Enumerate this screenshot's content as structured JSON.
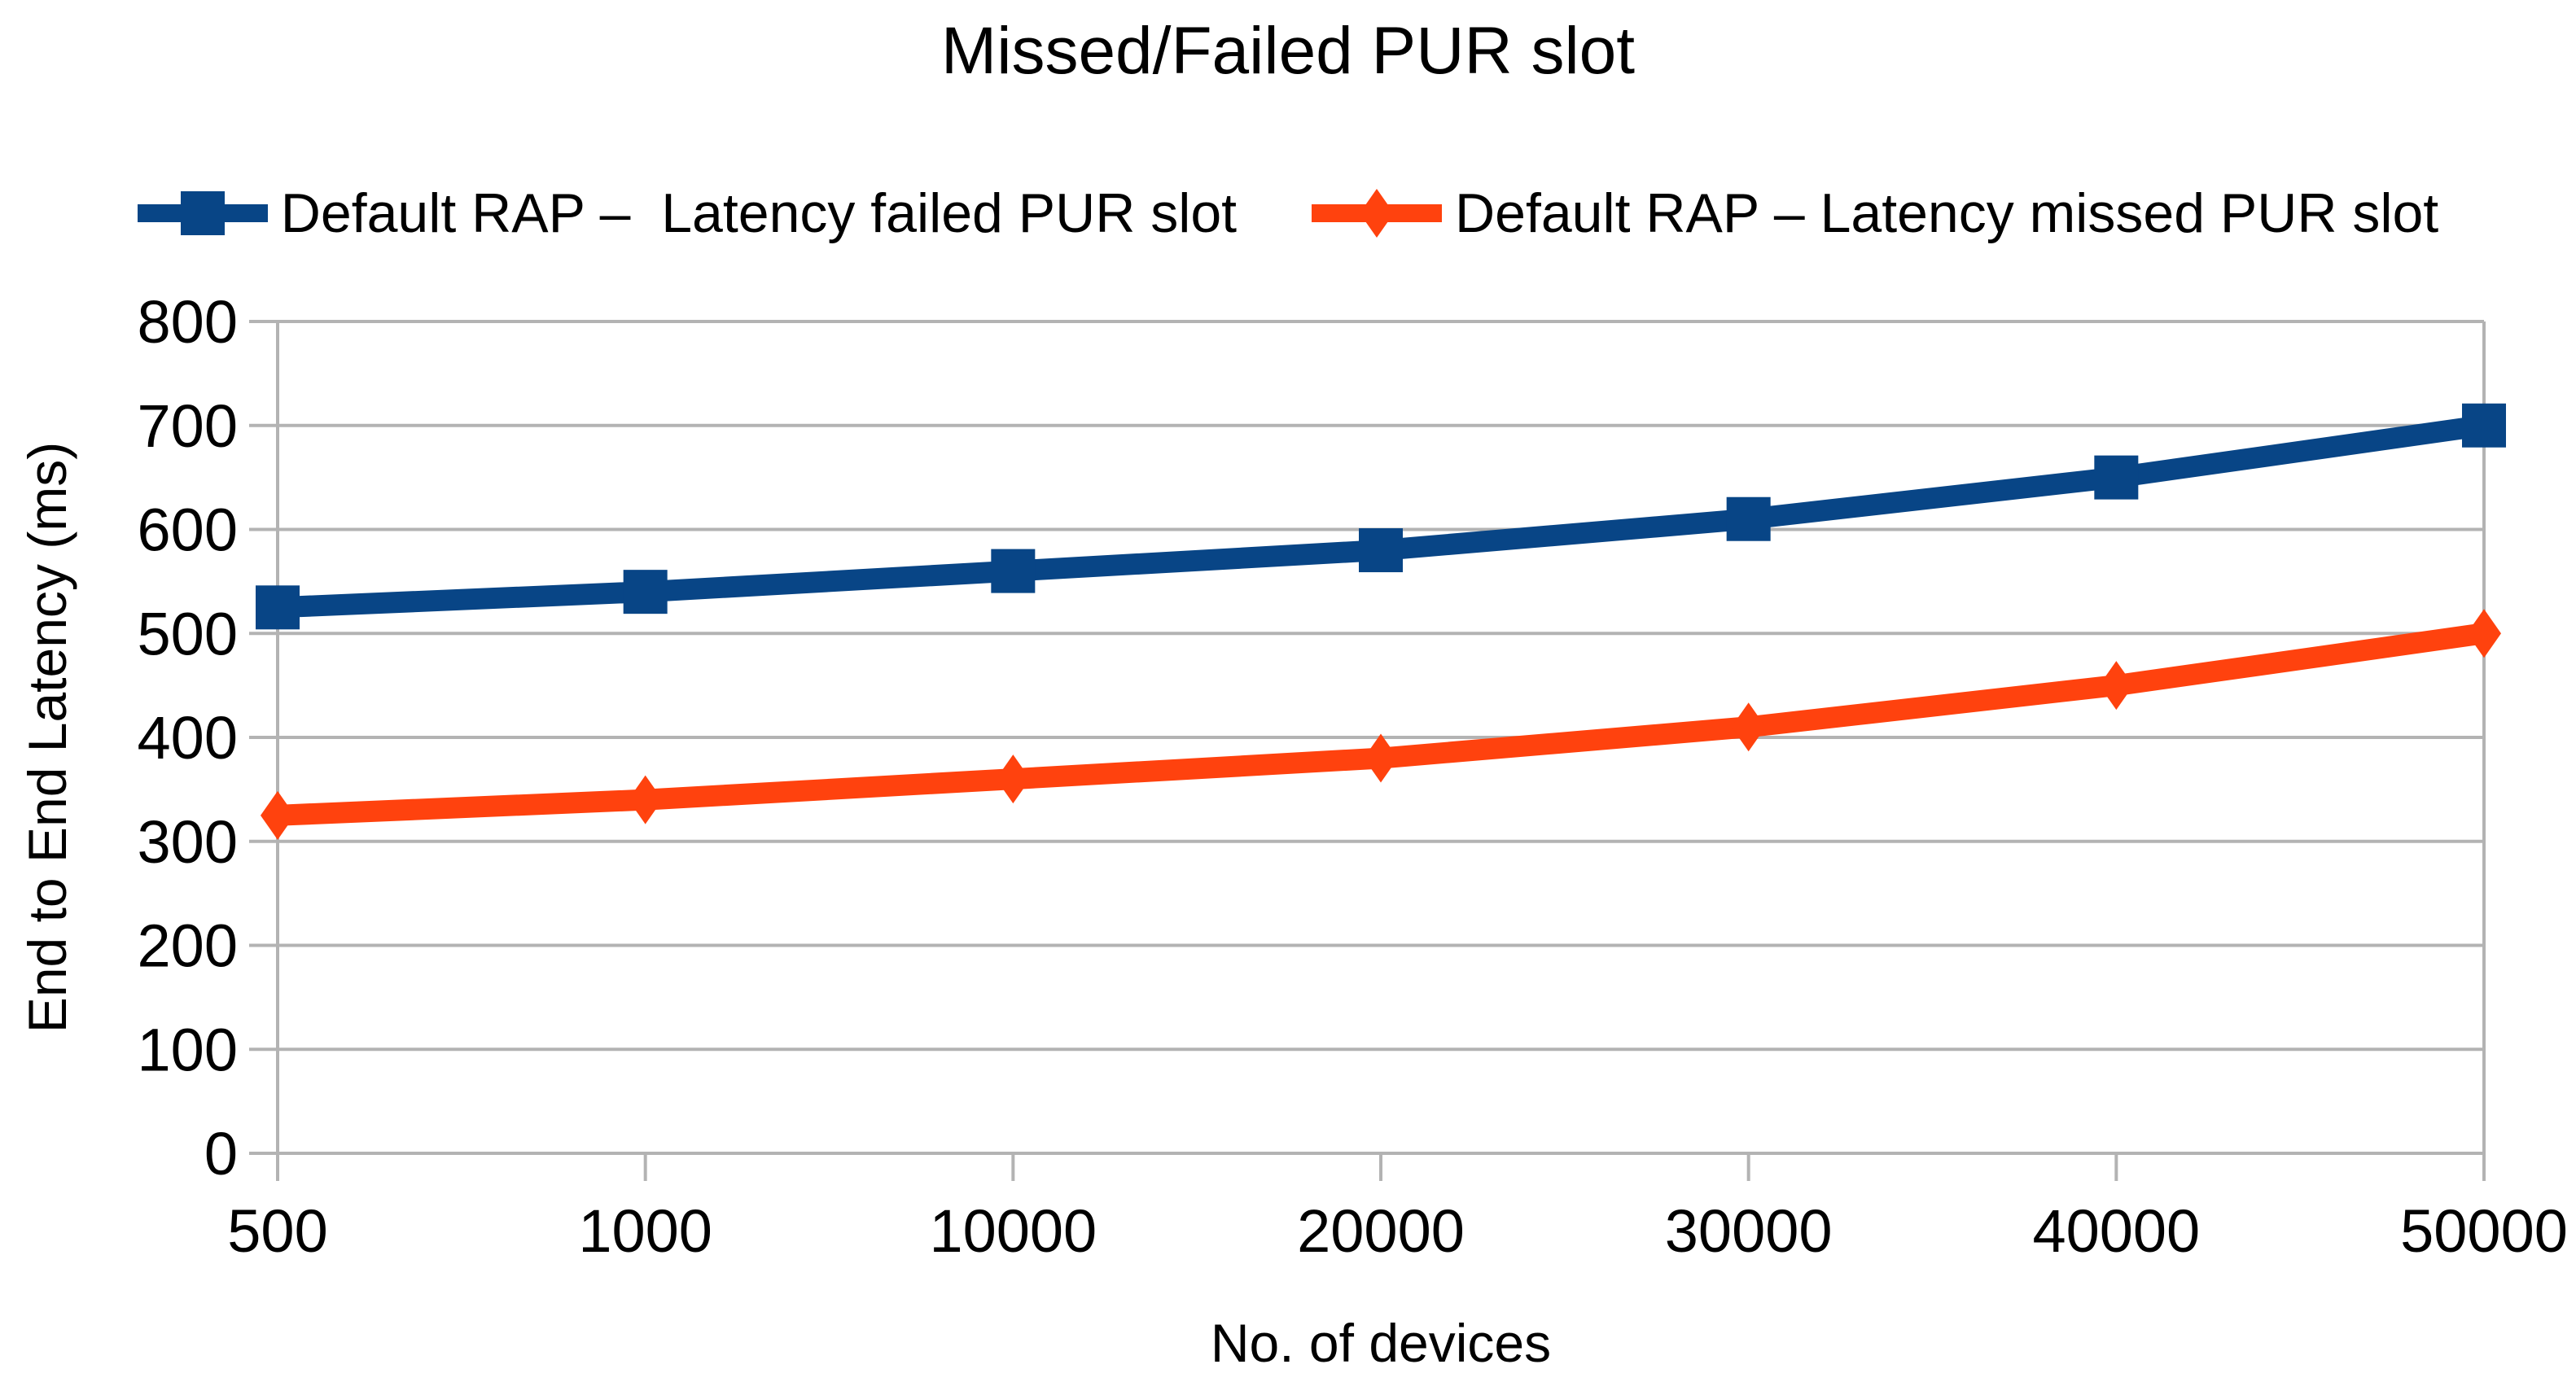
{
  "chart_data": {
    "type": "line",
    "title": "Missed/Failed PUR slot",
    "xlabel": "No. of devices",
    "ylabel": "End to End Latency (ms)",
    "categories": [
      "500",
      "1000",
      "10000",
      "20000",
      "30000",
      "40000",
      "50000"
    ],
    "series": [
      {
        "name": "Default RAP –  Latency failed PUR slot",
        "marker": "square",
        "color": "#084586",
        "values": [
          525,
          540,
          560,
          580,
          610,
          650,
          700
        ]
      },
      {
        "name": "Default RAP – Latency missed PUR slot",
        "marker": "diamond",
        "color": "#ff420e",
        "values": [
          325,
          340,
          360,
          380,
          410,
          450,
          500
        ]
      }
    ],
    "ylim": [
      0,
      800
    ],
    "ytick_step": 100,
    "grid": "horizontal",
    "legend_position": "top",
    "gridline_color": "#b3b3b3",
    "background": "#ffffff"
  }
}
